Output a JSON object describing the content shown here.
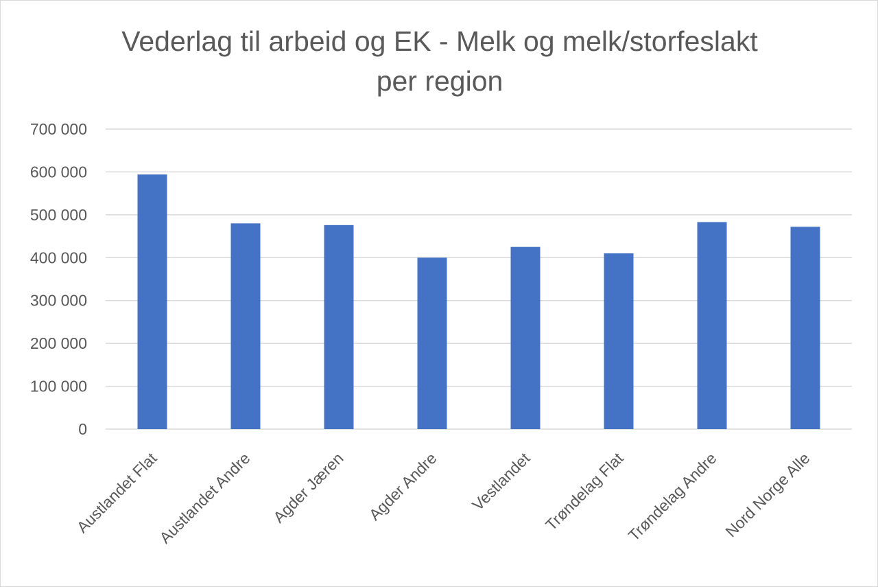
{
  "chart_data": {
    "type": "bar",
    "title_lines": [
      "Vederlag til arbeid og EK - Melk og melk/storfeslakt",
      "per region"
    ],
    "categories": [
      "Austlandet Flat",
      "Austlandet Andre",
      "Agder Jæren",
      "Agder Andre",
      "Vestlandet",
      "Trøndelag Flat",
      "Trøndelag Andre",
      "Nord Norge Alle"
    ],
    "values": [
      594000,
      480000,
      476000,
      400000,
      425000,
      410000,
      483000,
      472000
    ],
    "ylim": [
      0,
      700000
    ],
    "yticks": [
      0,
      100000,
      200000,
      300000,
      400000,
      500000,
      600000,
      700000
    ],
    "ytick_labels": [
      "0",
      "100 000",
      "200 000",
      "300 000",
      "400 000",
      "500 000",
      "600 000",
      "700 000"
    ],
    "grid": true,
    "legend": "none",
    "bar_color": "#4472C4"
  }
}
